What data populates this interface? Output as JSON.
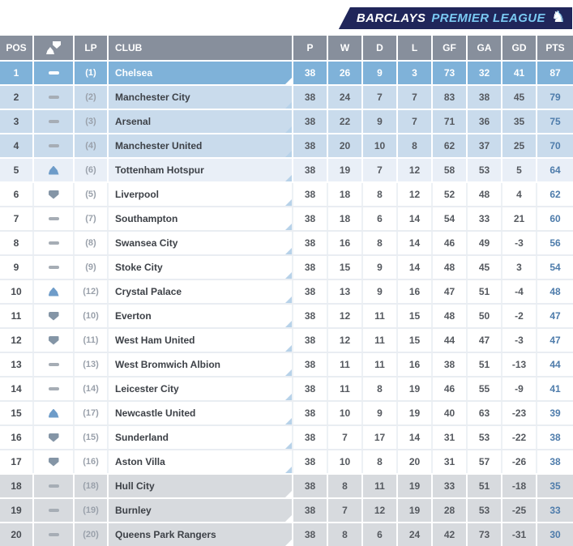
{
  "logo": {
    "brand": "BARCLAYS",
    "competition": "PREMIER LEAGUE",
    "lion_glyph": "♞"
  },
  "table": {
    "headers": {
      "pos": "POS",
      "lp": "LP",
      "club": "CLUB",
      "stats": [
        "P",
        "W",
        "D",
        "L",
        "GF",
        "GA",
        "GD",
        "PTS"
      ]
    },
    "rows": [
      {
        "pos": "1",
        "movement": "same",
        "lp": "(1)",
        "club": "Chelsea",
        "stats": [
          "38",
          "26",
          "9",
          "3",
          "73",
          "32",
          "41",
          "87"
        ],
        "zone": "champion"
      },
      {
        "pos": "2",
        "movement": "same",
        "lp": "(2)",
        "club": "Manchester City",
        "stats": [
          "38",
          "24",
          "7",
          "7",
          "83",
          "38",
          "45",
          "79"
        ],
        "zone": "cl"
      },
      {
        "pos": "3",
        "movement": "same",
        "lp": "(3)",
        "club": "Arsenal",
        "stats": [
          "38",
          "22",
          "9",
          "7",
          "71",
          "36",
          "35",
          "75"
        ],
        "zone": "cl"
      },
      {
        "pos": "4",
        "movement": "same",
        "lp": "(4)",
        "club": "Manchester United",
        "stats": [
          "38",
          "20",
          "10",
          "8",
          "62",
          "37",
          "25",
          "70"
        ],
        "zone": "cl"
      },
      {
        "pos": "5",
        "movement": "up",
        "lp": "(6)",
        "club": "Tottenham Hotspur",
        "stats": [
          "38",
          "19",
          "7",
          "12",
          "58",
          "53",
          "5",
          "64"
        ],
        "zone": "europa"
      },
      {
        "pos": "6",
        "movement": "down",
        "lp": "(5)",
        "club": "Liverpool",
        "stats": [
          "38",
          "18",
          "8",
          "12",
          "52",
          "48",
          "4",
          "62"
        ],
        "zone": "none"
      },
      {
        "pos": "7",
        "movement": "same",
        "lp": "(7)",
        "club": "Southampton",
        "stats": [
          "38",
          "18",
          "6",
          "14",
          "54",
          "33",
          "21",
          "60"
        ],
        "zone": "none"
      },
      {
        "pos": "8",
        "movement": "same",
        "lp": "(8)",
        "club": "Swansea City",
        "stats": [
          "38",
          "16",
          "8",
          "14",
          "46",
          "49",
          "-3",
          "56"
        ],
        "zone": "none"
      },
      {
        "pos": "9",
        "movement": "same",
        "lp": "(9)",
        "club": "Stoke City",
        "stats": [
          "38",
          "15",
          "9",
          "14",
          "48",
          "45",
          "3",
          "54"
        ],
        "zone": "none"
      },
      {
        "pos": "10",
        "movement": "up",
        "lp": "(12)",
        "club": "Crystal Palace",
        "stats": [
          "38",
          "13",
          "9",
          "16",
          "47",
          "51",
          "-4",
          "48"
        ],
        "zone": "none"
      },
      {
        "pos": "11",
        "movement": "down",
        "lp": "(10)",
        "club": "Everton",
        "stats": [
          "38",
          "12",
          "11",
          "15",
          "48",
          "50",
          "-2",
          "47"
        ],
        "zone": "none"
      },
      {
        "pos": "12",
        "movement": "down",
        "lp": "(11)",
        "club": "West Ham United",
        "stats": [
          "38",
          "12",
          "11",
          "15",
          "44",
          "47",
          "-3",
          "47"
        ],
        "zone": "none"
      },
      {
        "pos": "13",
        "movement": "same",
        "lp": "(13)",
        "club": "West Bromwich Albion",
        "stats": [
          "38",
          "11",
          "11",
          "16",
          "38",
          "51",
          "-13",
          "44"
        ],
        "zone": "none"
      },
      {
        "pos": "14",
        "movement": "same",
        "lp": "(14)",
        "club": "Leicester City",
        "stats": [
          "38",
          "11",
          "8",
          "19",
          "46",
          "55",
          "-9",
          "41"
        ],
        "zone": "none"
      },
      {
        "pos": "15",
        "movement": "up",
        "lp": "(17)",
        "club": "Newcastle United",
        "stats": [
          "38",
          "10",
          "9",
          "19",
          "40",
          "63",
          "-23",
          "39"
        ],
        "zone": "none"
      },
      {
        "pos": "16",
        "movement": "down",
        "lp": "(15)",
        "club": "Sunderland",
        "stats": [
          "38",
          "7",
          "17",
          "14",
          "31",
          "53",
          "-22",
          "38"
        ],
        "zone": "none"
      },
      {
        "pos": "17",
        "movement": "down",
        "lp": "(16)",
        "club": "Aston Villa",
        "stats": [
          "38",
          "10",
          "8",
          "20",
          "31",
          "57",
          "-26",
          "38"
        ],
        "zone": "none"
      },
      {
        "pos": "18",
        "movement": "same",
        "lp": "(18)",
        "club": "Hull City",
        "stats": [
          "38",
          "8",
          "11",
          "19",
          "33",
          "51",
          "-18",
          "35"
        ],
        "zone": "releg"
      },
      {
        "pos": "19",
        "movement": "same",
        "lp": "(19)",
        "club": "Burnley",
        "stats": [
          "38",
          "7",
          "12",
          "19",
          "28",
          "53",
          "-25",
          "33"
        ],
        "zone": "releg"
      },
      {
        "pos": "20",
        "movement": "same",
        "lp": "(20)",
        "club": "Queens Park Rangers",
        "stats": [
          "38",
          "8",
          "6",
          "24",
          "42",
          "73",
          "-31",
          "30"
        ],
        "zone": "releg"
      }
    ]
  },
  "colors": {
    "header_bg": "#878f9c",
    "champion_row": "#7fb2d9",
    "champions_league_row": "#c9dbec",
    "europa_row": "#e9eff7",
    "white_row": "#ffffff",
    "relegation_row": "#d7dade",
    "points_text": "#4e7cab",
    "up_arrow": "#6e9cc9",
    "down_arrow": "#8495a6",
    "no_change_dash": "#a6adb5",
    "logo_bg": "#20265a",
    "logo_accent_text": "#7ac9f2"
  }
}
